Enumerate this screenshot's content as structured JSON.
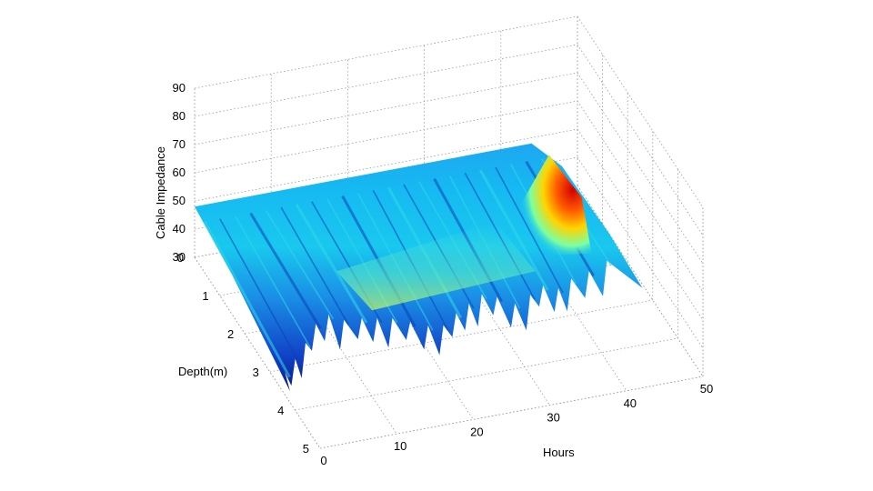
{
  "chart_data": {
    "type": "surface3d",
    "xlabel": "Hours",
    "ylabel": "Depth(m)",
    "zlabel": "Cable Impedance",
    "xlim": [
      0,
      50
    ],
    "ylim": [
      0,
      5
    ],
    "zlim": [
      30,
      90
    ],
    "x_ticks": [
      "0",
      "10",
      "20",
      "30",
      "40",
      "50"
    ],
    "y_ticks": [
      "0",
      "1",
      "2",
      "3",
      "4",
      "5"
    ],
    "z_ticks": [
      "30",
      "40",
      "50",
      "60",
      "70",
      "80",
      "90"
    ],
    "grid": true,
    "colormap": "jet",
    "surface_front_profile": {
      "hours": [
        0,
        2,
        4,
        6,
        8,
        10,
        12,
        14,
        16,
        18,
        20,
        22,
        24,
        26,
        28,
        30,
        32,
        34,
        36,
        38,
        40,
        42,
        44
      ],
      "impedance": [
        38,
        39,
        41,
        44,
        45,
        42,
        43,
        42,
        41,
        40,
        39,
        38,
        40,
        41,
        42,
        40,
        38,
        40,
        41,
        39,
        40,
        43,
        47
      ]
    },
    "baseline_impedance": 48,
    "peak": {
      "hours": 42,
      "depth": 1.8,
      "impedance": 58
    }
  }
}
